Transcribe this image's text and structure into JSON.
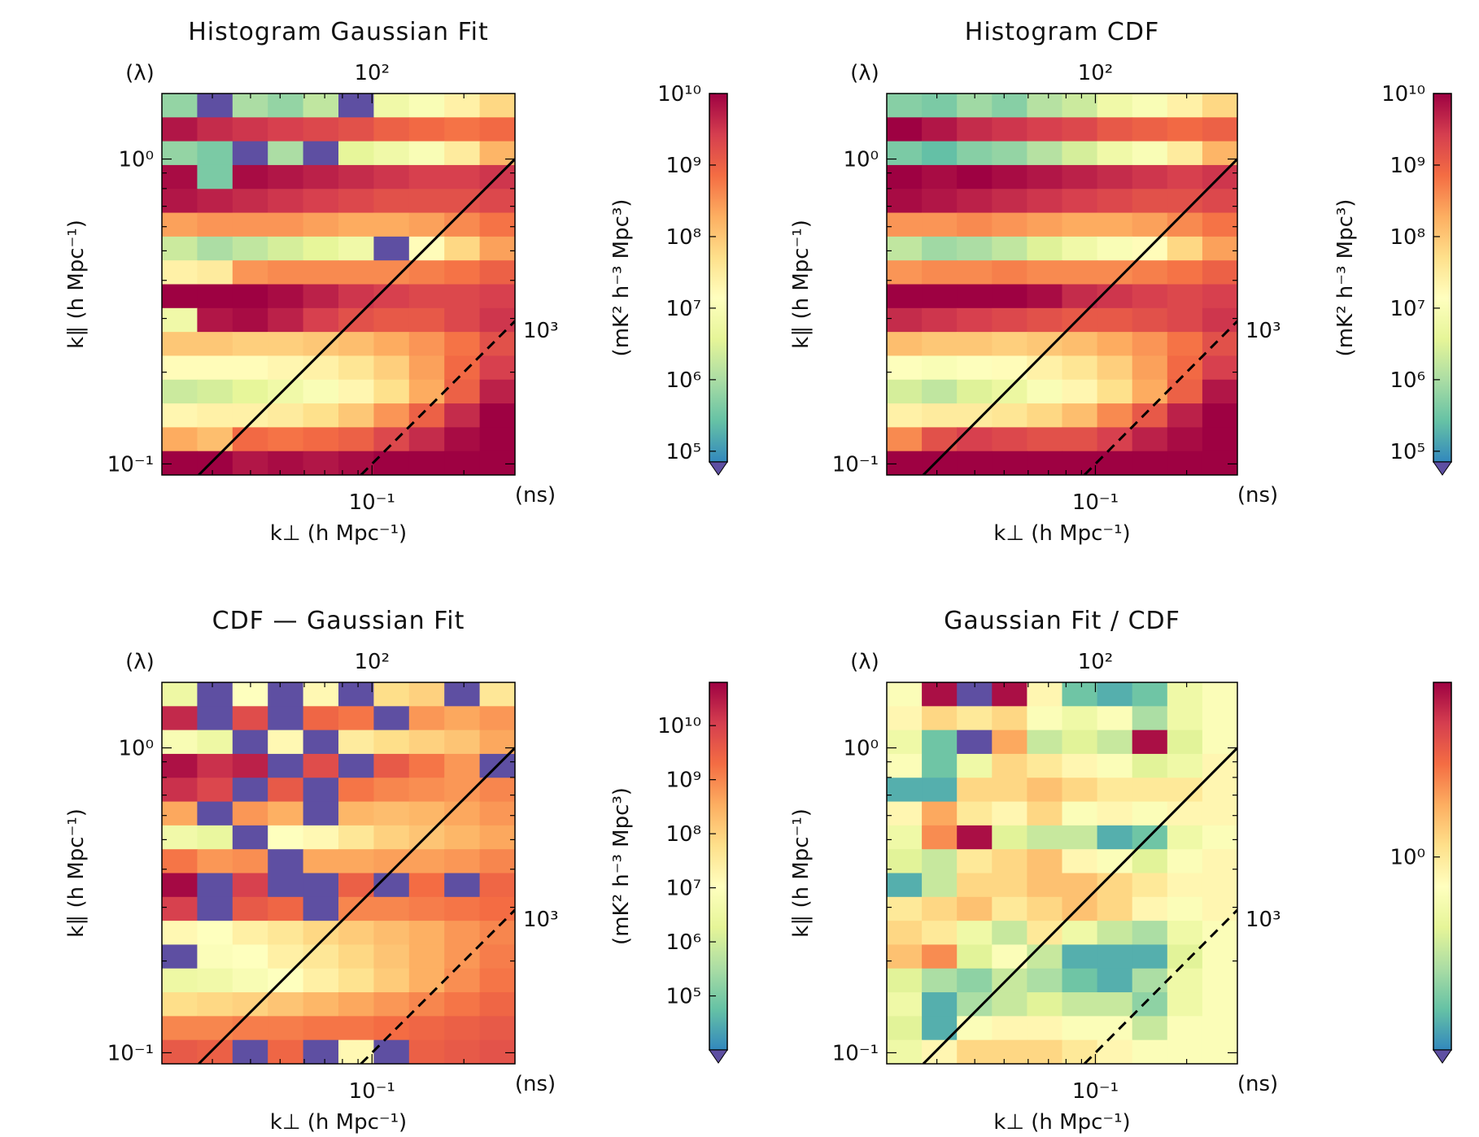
{
  "colormap": {
    "stops": [
      "#3288bd",
      "#66c2a5",
      "#abdda4",
      "#e6f598",
      "#ffffbf",
      "#fee08b",
      "#fdae61",
      "#f46d43",
      "#d53e4f",
      "#9e0142"
    ],
    "under_color": "#5e4fa2",
    "line_color": "#000000"
  },
  "chart_data": [
    {
      "type": "heatmap",
      "title": "Histogram Gaussian Fit",
      "xlabel": "k⊥ (h Mpc⁻¹)",
      "ylabel": "k∥ (h Mpc⁻¹)",
      "xscale": "log",
      "yscale": "log",
      "xlim": [
        0.0205,
        0.294
      ],
      "ylim": [
        0.092,
        1.64
      ],
      "xticks": [
        {
          "value": 0.1,
          "label": "10⁻¹"
        }
      ],
      "yticks": [
        {
          "value": 1,
          "label": "10⁰"
        },
        {
          "value": 0.1,
          "label": "10⁻¹"
        }
      ],
      "top_axis": {
        "label": "(λ)",
        "ticks": [
          {
            "value": 0.1,
            "label": "10²"
          }
        ]
      },
      "right_axis": {
        "label": "(ns)",
        "ticks": [
          {
            "value": 0.2,
            "label": "10³"
          }
        ]
      },
      "lines": [
        {
          "style": "solid",
          "ratio": 3.4
        },
        {
          "style": "dashed",
          "ratio": 1.0
        }
      ],
      "colorbar": {
        "label": "(mK² h⁻³ Mpc³)",
        "scale": "log",
        "log_range": [
          4.85,
          10.0
        ],
        "extend": "min",
        "ticks": [
          {
            "log": 10,
            "label": "10¹⁰"
          },
          {
            "log": 9,
            "label": "10⁹"
          },
          {
            "log": 8,
            "label": "10⁸"
          },
          {
            "log": 7,
            "label": "10⁷"
          },
          {
            "log": 6,
            "label": "10⁶"
          },
          {
            "log": 5,
            "label": "10⁵"
          }
        ]
      },
      "log_values": [
        [
          5.8,
          4.5,
          6.0,
          5.8,
          6.2,
          4.5,
          6.8,
          7.0,
          7.4,
          7.8
        ],
        [
          9.8,
          9.6,
          9.5,
          9.4,
          9.3,
          9.2,
          9.0,
          8.9,
          8.8,
          8.9
        ],
        [
          5.8,
          5.6,
          4.5,
          6.0,
          4.5,
          6.6,
          6.8,
          7.0,
          7.5,
          8.2
        ],
        [
          9.9,
          5.6,
          9.9,
          9.8,
          9.7,
          9.6,
          9.5,
          9.4,
          9.4,
          9.5
        ],
        [
          9.8,
          9.7,
          9.6,
          9.5,
          9.4,
          9.3,
          9.2,
          9.2,
          9.2,
          9.3
        ],
        [
          8.4,
          8.5,
          8.5,
          8.5,
          8.4,
          8.3,
          8.3,
          8.4,
          8.6,
          8.8
        ],
        [
          6.3,
          6.0,
          6.2,
          6.4,
          6.6,
          6.8,
          4.5,
          7.2,
          7.8,
          8.4
        ],
        [
          7.4,
          7.5,
          8.5,
          8.6,
          8.6,
          8.6,
          8.6,
          8.7,
          8.8,
          9.0
        ],
        [
          10,
          10,
          10,
          9.9,
          9.7,
          9.5,
          9.4,
          9.3,
          9.3,
          9.4
        ],
        [
          6.8,
          9.8,
          9.9,
          9.7,
          9.4,
          9.2,
          9.1,
          9.1,
          9.3,
          9.5
        ],
        [
          8.0,
          8.0,
          7.9,
          7.9,
          8.0,
          8.1,
          8.3,
          8.5,
          8.8,
          9.2
        ],
        [
          7.2,
          7.2,
          7.2,
          7.3,
          7.4,
          7.6,
          7.9,
          8.4,
          8.9,
          9.4
        ],
        [
          6.3,
          6.4,
          6.6,
          6.8,
          7.0,
          7.3,
          7.7,
          8.3,
          9.0,
          9.7
        ],
        [
          7.3,
          7.4,
          7.4,
          7.5,
          7.7,
          8.0,
          8.5,
          9.0,
          9.6,
          10
        ],
        [
          8.3,
          8.1,
          8.9,
          8.8,
          8.9,
          9.0,
          9.3,
          9.6,
          9.9,
          10
        ],
        [
          10,
          10,
          9.8,
          9.9,
          9.8,
          9.9,
          10,
          10,
          10,
          10
        ]
      ]
    },
    {
      "type": "heatmap",
      "title": "Histogram CDF",
      "xlabel": "k⊥ (h Mpc⁻¹)",
      "ylabel": "k∥ (h Mpc⁻¹)",
      "xscale": "log",
      "yscale": "log",
      "xlim": [
        0.0205,
        0.294
      ],
      "ylim": [
        0.092,
        1.64
      ],
      "xticks": [
        {
          "value": 0.1,
          "label": "10⁻¹"
        }
      ],
      "yticks": [
        {
          "value": 1,
          "label": "10⁰"
        },
        {
          "value": 0.1,
          "label": "10⁻¹"
        }
      ],
      "top_axis": {
        "label": "(λ)",
        "ticks": [
          {
            "value": 0.1,
            "label": "10²"
          }
        ]
      },
      "right_axis": {
        "label": "(ns)",
        "ticks": [
          {
            "value": 0.2,
            "label": "10³"
          }
        ]
      },
      "lines": [
        {
          "style": "solid",
          "ratio": 3.4
        },
        {
          "style": "dashed",
          "ratio": 1.0
        }
      ],
      "colorbar": {
        "label": "(mK² h⁻³ Mpc³)",
        "scale": "log",
        "log_range": [
          4.85,
          10.0
        ],
        "extend": "min",
        "ticks": [
          {
            "log": 10,
            "label": "10¹⁰"
          },
          {
            "log": 9,
            "label": "10⁹"
          },
          {
            "log": 8,
            "label": "10⁸"
          },
          {
            "log": 7,
            "label": "10⁷"
          },
          {
            "log": 6,
            "label": "10⁶"
          },
          {
            "log": 5,
            "label": "10⁵"
          }
        ]
      },
      "log_values": [
        [
          5.7,
          5.6,
          5.9,
          5.7,
          6.1,
          6.3,
          6.8,
          7.0,
          7.4,
          7.8
        ],
        [
          10,
          9.8,
          9.6,
          9.5,
          9.4,
          9.3,
          9.1,
          9.0,
          8.9,
          9.0
        ],
        [
          5.6,
          5.4,
          5.7,
          5.8,
          6.1,
          6.4,
          6.8,
          7.0,
          7.5,
          8.2
        ],
        [
          10,
          9.9,
          10,
          9.9,
          9.8,
          9.7,
          9.6,
          9.5,
          9.4,
          9.5
        ],
        [
          9.9,
          9.8,
          9.7,
          9.6,
          9.5,
          9.4,
          9.3,
          9.2,
          9.2,
          9.3
        ],
        [
          8.5,
          8.5,
          8.6,
          8.5,
          8.4,
          8.3,
          8.3,
          8.4,
          8.6,
          8.8
        ],
        [
          6.2,
          5.9,
          6.0,
          6.2,
          6.5,
          6.8,
          7.0,
          7.2,
          7.8,
          8.4
        ],
        [
          8.5,
          8.6,
          8.6,
          8.7,
          8.6,
          8.6,
          8.6,
          8.7,
          8.8,
          9.0
        ],
        [
          10,
          10,
          10,
          10,
          9.9,
          9.6,
          9.5,
          9.4,
          9.3,
          9.4
        ],
        [
          9.6,
          9.5,
          9.4,
          9.3,
          9.2,
          9.1,
          9.1,
          9.2,
          9.3,
          9.5
        ],
        [
          8.1,
          8.0,
          8.0,
          7.9,
          8.0,
          8.1,
          8.3,
          8.5,
          8.8,
          9.2
        ],
        [
          7.1,
          7.0,
          7.1,
          7.2,
          7.4,
          7.6,
          7.9,
          8.4,
          8.9,
          9.4
        ],
        [
          6.4,
          6.2,
          6.5,
          6.7,
          7.0,
          7.3,
          7.7,
          8.3,
          9.0,
          9.8
        ],
        [
          7.4,
          7.5,
          7.5,
          7.6,
          7.8,
          8.1,
          8.6,
          9.1,
          9.7,
          10
        ],
        [
          8.6,
          9.2,
          9.4,
          9.3,
          9.2,
          9.2,
          9.4,
          9.7,
          9.9,
          10
        ],
        [
          10,
          10,
          10,
          10,
          10,
          10,
          10,
          10,
          10,
          10
        ]
      ]
    },
    {
      "type": "heatmap",
      "title": "CDF — Gaussian Fit",
      "xlabel": "k⊥ (h Mpc⁻¹)",
      "ylabel": "k∥ (h Mpc⁻¹)",
      "xscale": "log",
      "yscale": "log",
      "xlim": [
        0.0205,
        0.294
      ],
      "ylim": [
        0.092,
        1.64
      ],
      "xticks": [
        {
          "value": 0.1,
          "label": "10⁻¹"
        }
      ],
      "yticks": [
        {
          "value": 1,
          "label": "10⁰"
        },
        {
          "value": 0.1,
          "label": "10⁻¹"
        }
      ],
      "top_axis": {
        "label": "(λ)",
        "ticks": [
          {
            "value": 0.1,
            "label": "10²"
          }
        ]
      },
      "right_axis": {
        "label": "(ns)",
        "ticks": [
          {
            "value": 0.2,
            "label": "10³"
          }
        ]
      },
      "lines": [
        {
          "style": "solid",
          "ratio": 3.4
        },
        {
          "style": "dashed",
          "ratio": 1.0
        }
      ],
      "colorbar": {
        "label": "(mK² h⁻³ Mpc³)",
        "scale": "log",
        "log_range": [
          4.0,
          10.8
        ],
        "extend": "min",
        "ticks": [
          {
            "log": 10,
            "label": "10¹⁰"
          },
          {
            "log": 9,
            "label": "10⁹"
          },
          {
            "log": 8,
            "label": "10⁸"
          },
          {
            "log": 7,
            "label": "10⁷"
          },
          {
            "log": 6,
            "label": "10⁶"
          },
          {
            "log": 5,
            "label": "10⁵"
          }
        ]
      },
      "log_values": [
        [
          6.5,
          null,
          7.0,
          null,
          7.2,
          null,
          7.8,
          8.0,
          null,
          7.6
        ],
        [
          10.3,
          null,
          9.8,
          null,
          9.4,
          9.2,
          null,
          8.8,
          8.6,
          8.8
        ],
        [
          6.8,
          6.5,
          null,
          7.2,
          null,
          7.5,
          7.8,
          8.0,
          8.2,
          8.6
        ],
        [
          10.6,
          10.2,
          10.4,
          null,
          9.8,
          null,
          9.6,
          9.2,
          8.8,
          null
        ],
        [
          10.2,
          9.9,
          null,
          9.6,
          null,
          9.2,
          9.0,
          8.9,
          8.8,
          9.0
        ],
        [
          8.6,
          null,
          8.8,
          8.5,
          null,
          8.4,
          8.3,
          8.4,
          8.6,
          8.8
        ],
        [
          6.6,
          6.4,
          null,
          7.0,
          7.2,
          7.6,
          8.0,
          8.2,
          8.4,
          8.6
        ],
        [
          9.2,
          8.8,
          8.9,
          null,
          8.6,
          8.6,
          8.7,
          8.7,
          8.8,
          9.0
        ],
        [
          10.7,
          null,
          10.0,
          null,
          null,
          9.5,
          null,
          9.3,
          null,
          9.4
        ],
        [
          10.0,
          null,
          9.6,
          9.4,
          null,
          9.0,
          9.0,
          9.1,
          9.2,
          9.3
        ],
        [
          7.2,
          7.0,
          7.4,
          7.6,
          7.9,
          8.1,
          8.3,
          8.5,
          8.8,
          9.0
        ],
        [
          null,
          6.9,
          7.0,
          7.4,
          7.6,
          7.9,
          8.2,
          8.5,
          8.8,
          9.1
        ],
        [
          6.5,
          6.6,
          6.8,
          7.0,
          7.4,
          7.7,
          8.1,
          8.5,
          8.9,
          9.2
        ],
        [
          7.8,
          7.9,
          8.0,
          8.2,
          8.4,
          8.6,
          8.8,
          9.0,
          9.2,
          9.4
        ],
        [
          9.0,
          9.0,
          9.1,
          9.1,
          9.2,
          9.2,
          9.3,
          9.4,
          9.5,
          9.6
        ],
        [
          9.6,
          9.5,
          null,
          9.4,
          null,
          7.2,
          null,
          9.5,
          9.6,
          9.7
        ]
      ]
    },
    {
      "type": "heatmap",
      "title": "Gaussian Fit / CDF",
      "xlabel": "k⊥ (h Mpc⁻¹)",
      "ylabel": "k∥ (h Mpc⁻¹)",
      "xscale": "log",
      "yscale": "log",
      "xlim": [
        0.0205,
        0.294
      ],
      "ylim": [
        0.092,
        1.64
      ],
      "xticks": [
        {
          "value": 0.1,
          "label": "10⁻¹"
        }
      ],
      "yticks": [
        {
          "value": 1,
          "label": "10⁰"
        },
        {
          "value": 0.1,
          "label": "10⁻¹"
        }
      ],
      "top_axis": {
        "label": "(λ)",
        "ticks": [
          {
            "value": 0.1,
            "label": "10²"
          }
        ]
      },
      "right_axis": {
        "label": "(ns)",
        "ticks": [
          {
            "value": 0.2,
            "label": "10³"
          }
        ]
      },
      "lines": [
        {
          "style": "solid",
          "ratio": 3.4
        },
        {
          "style": "dashed",
          "ratio": 1.0
        }
      ],
      "colorbar": {
        "label": "",
        "scale": "log",
        "log_range": [
          -1.05,
          0.95
        ],
        "extend": "min",
        "ticks": [
          {
            "log": 0,
            "label": "10⁰"
          }
        ]
      },
      "log_values": [
        [
          -0.2,
          0.9,
          null,
          0.9,
          -0.1,
          -0.8,
          -0.9,
          -0.8,
          -0.3,
          -0.2
        ],
        [
          -0.1,
          0.1,
          0.0,
          0.1,
          -0.2,
          -0.3,
          -0.2,
          -0.6,
          -0.3,
          -0.2
        ],
        [
          -0.3,
          -0.8,
          null,
          0.3,
          -0.5,
          -0.4,
          -0.5,
          0.9,
          -0.4,
          -0.2
        ],
        [
          -0.2,
          -0.8,
          -0.3,
          0.1,
          0.0,
          -0.1,
          -0.2,
          -0.4,
          -0.3,
          -0.1
        ],
        [
          -0.9,
          -0.9,
          0.1,
          0.1,
          0.2,
          0.1,
          0.0,
          0.0,
          0.0,
          -0.1
        ],
        [
          -0.1,
          0.3,
          0.0,
          -0.1,
          0.1,
          -0.2,
          -0.1,
          -0.2,
          -0.1,
          -0.1
        ],
        [
          -0.3,
          0.4,
          0.9,
          -0.4,
          -0.5,
          -0.5,
          -0.9,
          -0.8,
          -0.3,
          -0.2
        ],
        [
          -0.4,
          -0.5,
          0.0,
          0.1,
          0.2,
          -0.1,
          -0.2,
          -0.4,
          -0.2,
          -0.1
        ],
        [
          -0.9,
          -0.5,
          0.1,
          0.1,
          0.2,
          0.2,
          0.1,
          0.0,
          -0.1,
          -0.1
        ],
        [
          0.0,
          0.1,
          0.2,
          0.0,
          0.1,
          0.2,
          0.1,
          -0.1,
          -0.2,
          -0.1
        ],
        [
          0.1,
          0.0,
          -0.3,
          -0.5,
          0.0,
          -0.3,
          -0.5,
          -0.6,
          -0.3,
          -0.2
        ],
        [
          0.2,
          0.4,
          -0.4,
          -0.2,
          -0.5,
          -0.9,
          -0.9,
          -0.9,
          -0.4,
          -0.2
        ],
        [
          -0.4,
          -0.6,
          -0.7,
          -0.5,
          -0.6,
          -0.8,
          -0.9,
          -0.6,
          -0.3,
          -0.2
        ],
        [
          -0.3,
          -0.9,
          -0.6,
          -0.5,
          -0.4,
          -0.5,
          -0.5,
          -0.7,
          -0.3,
          -0.2
        ],
        [
          -0.4,
          -0.9,
          -0.2,
          -0.1,
          -0.1,
          -0.2,
          -0.2,
          -0.5,
          -0.2,
          -0.2
        ],
        [
          -0.3,
          -0.1,
          0.1,
          0.1,
          0.1,
          0.0,
          -0.1,
          -0.2,
          -0.2,
          -0.2
        ]
      ]
    }
  ]
}
